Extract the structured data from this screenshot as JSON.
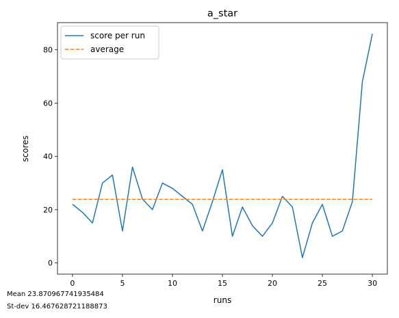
{
  "chart_data": {
    "type": "line",
    "title": "a_star",
    "xlabel": "runs",
    "ylabel": "scores",
    "xlim": [
      -1.5,
      31.5
    ],
    "ylim": [
      -4.2,
      90.2
    ],
    "xticks": [
      0,
      5,
      10,
      15,
      20,
      25,
      30
    ],
    "yticks": [
      0,
      20,
      40,
      60,
      80
    ],
    "grid": false,
    "legend_position": "top-left",
    "x": [
      0,
      1,
      2,
      3,
      4,
      5,
      6,
      7,
      8,
      9,
      10,
      11,
      12,
      13,
      14,
      15,
      16,
      17,
      18,
      19,
      20,
      21,
      22,
      23,
      24,
      25,
      26,
      27,
      28,
      29,
      30
    ],
    "series": [
      {
        "name": "score per run",
        "style": "solid",
        "color": "#1f77b4",
        "values": [
          22,
          19,
          15,
          30,
          33,
          12,
          36,
          24,
          20,
          30,
          28,
          25,
          22,
          12,
          23,
          35,
          10,
          21,
          14,
          10,
          15,
          25,
          21,
          2,
          15,
          22,
          10,
          12,
          23,
          68,
          86
        ]
      },
      {
        "name": "average",
        "style": "dashed",
        "color": "#ff7f0e",
        "values": [
          23.87,
          23.87,
          23.87,
          23.87,
          23.87,
          23.87,
          23.87,
          23.87,
          23.87,
          23.87,
          23.87,
          23.87,
          23.87,
          23.87,
          23.87,
          23.87,
          23.87,
          23.87,
          23.87,
          23.87,
          23.87,
          23.87,
          23.87,
          23.87,
          23.87,
          23.87,
          23.87,
          23.87,
          23.87,
          23.87,
          23.87
        ]
      }
    ]
  },
  "stats": {
    "mean_text": "Mean 23.870967741935484",
    "stdev_text": "St-dev 16.467628721188873"
  }
}
